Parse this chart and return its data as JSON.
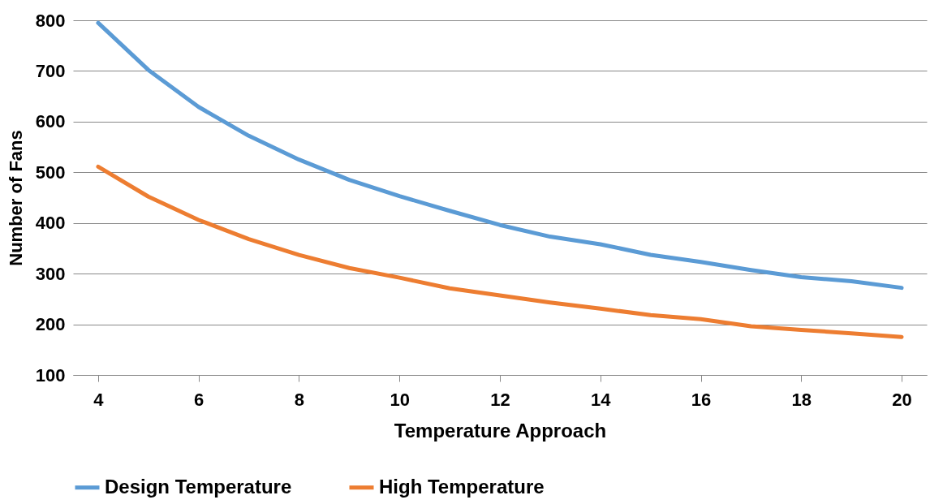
{
  "chart_data": {
    "type": "line",
    "xlabel": "Temperature Approach",
    "ylabel": "Number of Fans",
    "x": [
      4,
      5,
      6,
      7,
      8,
      9,
      10,
      11,
      12,
      13,
      14,
      15,
      16,
      17,
      18,
      19,
      20
    ],
    "series": [
      {
        "name": "Design Temperature",
        "color": "#5b9bd5",
        "values": [
          795,
          702,
          629,
          572,
          525,
          485,
          453,
          424,
          396,
          373,
          358,
          337,
          323,
          307,
          293,
          285,
          272
        ]
      },
      {
        "name": "High Temperature",
        "color": "#ed7d31",
        "values": [
          511,
          452,
          406,
          368,
          337,
          311,
          292,
          271,
          257,
          243,
          231,
          218,
          210,
          196,
          189,
          182,
          175
        ]
      }
    ],
    "xlim": [
      3.5,
      20.5
    ],
    "xticks": [
      4,
      6,
      8,
      10,
      12,
      14,
      16,
      18,
      20
    ],
    "ylim": [
      100,
      800
    ],
    "yticks": [
      100,
      200,
      300,
      400,
      500,
      600,
      700,
      800
    ],
    "grid": "y",
    "legend": "bottom",
    "marker": "none",
    "line_style": "solid"
  }
}
